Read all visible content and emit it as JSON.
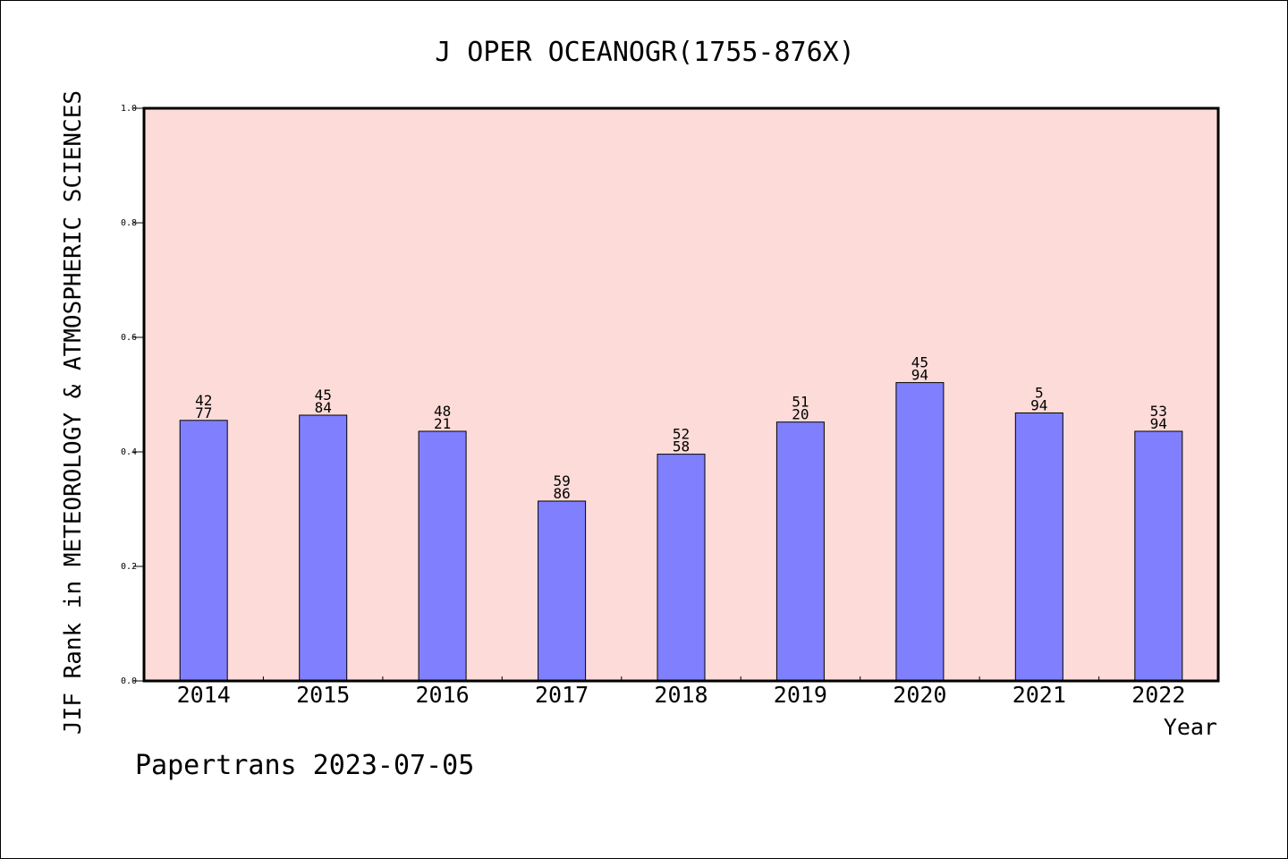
{
  "chart_data": {
    "type": "bar",
    "title": "J OPER OCEANOGR(1755-876X)",
    "xlabel": "Year",
    "ylabel": "JIF Rank in METEOROLOGY & ATMOSPHERIC SCIENCES",
    "categories": [
      "2014",
      "2015",
      "2016",
      "2017",
      "2018",
      "2019",
      "2020",
      "2021",
      "2022"
    ],
    "values": [
      0.455,
      0.464,
      0.436,
      0.314,
      0.396,
      0.452,
      0.521,
      0.468,
      0.436
    ],
    "bar_labels": [
      [
        "42",
        "77"
      ],
      [
        "45",
        "84"
      ],
      [
        "48",
        "21"
      ],
      [
        "59",
        "86"
      ],
      [
        "52",
        "58"
      ],
      [
        "51",
        "20"
      ],
      [
        "45",
        "94"
      ],
      [
        "5",
        "94"
      ],
      [
        "53",
        "94"
      ]
    ],
    "ylim": [
      0,
      1.0
    ],
    "yticks": [
      "0.0",
      "0.2",
      "0.4",
      "0.6",
      "0.8",
      "1.0"
    ],
    "grid": false,
    "colors": {
      "plot_background": "#fddbd8",
      "bar_fill": "#8080ff",
      "bar_stroke": "#000000"
    }
  },
  "footer": "Papertrans 2023-07-05"
}
